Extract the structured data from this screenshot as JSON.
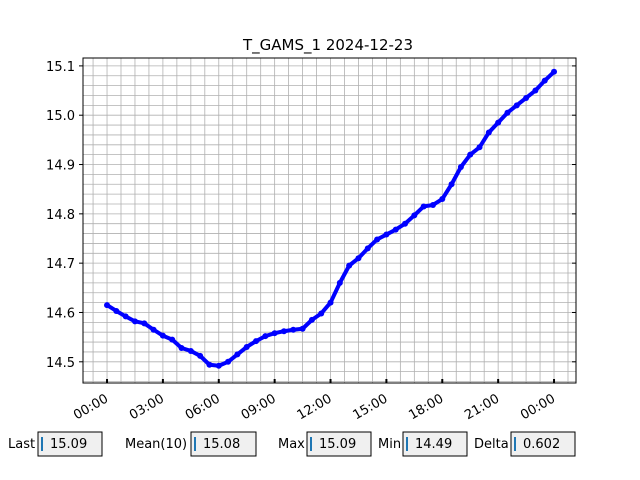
{
  "chart_data": {
    "type": "line",
    "title": "T_GAMS_1 2024-12-23",
    "x": [
      0,
      0.5,
      1,
      1.5,
      2,
      2.5,
      3,
      3.5,
      4,
      4.5,
      5,
      5.5,
      6,
      6.5,
      7,
      7.5,
      8,
      8.5,
      9,
      9.5,
      10,
      10.5,
      11,
      11.5,
      12,
      12.5,
      13,
      13.5,
      14,
      14.5,
      15,
      15.5,
      16,
      16.5,
      17,
      17.5,
      18,
      18.5,
      19,
      19.5,
      20,
      20.5,
      21,
      21.5,
      22,
      22.5,
      23,
      23.5,
      24
    ],
    "series": [
      {
        "name": "T_GAMS_1",
        "color": "#0000ff",
        "values": [
          14.615,
          14.603,
          14.592,
          14.582,
          14.578,
          14.565,
          14.553,
          14.545,
          14.528,
          14.522,
          14.512,
          14.494,
          14.492,
          14.5,
          14.515,
          14.53,
          14.542,
          14.552,
          14.558,
          14.562,
          14.565,
          14.567,
          14.585,
          14.598,
          14.62,
          14.66,
          14.695,
          14.71,
          14.73,
          14.748,
          14.758,
          14.768,
          14.78,
          14.797,
          14.815,
          14.818,
          14.83,
          14.86,
          14.895,
          14.92,
          14.935,
          14.965,
          14.985,
          15.005,
          15.02,
          15.035,
          15.05,
          15.07,
          15.088
        ]
      }
    ],
    "xlim": [
      -1.29,
      25.18
    ],
    "xticks": [
      {
        "value": 0,
        "label": "00:00"
      },
      {
        "value": 3,
        "label": "03:00"
      },
      {
        "value": 6,
        "label": "06:00"
      },
      {
        "value": 9,
        "label": "09:00"
      },
      {
        "value": 12,
        "label": "12:00"
      },
      {
        "value": 15,
        "label": "15:00"
      },
      {
        "value": 18,
        "label": "18:00"
      },
      {
        "value": 21,
        "label": "21:00"
      },
      {
        "value": 24,
        "label": "00:00"
      }
    ],
    "ylim": [
      14.457,
      15.116
    ],
    "yticks": [
      {
        "value": 14.5,
        "label": "14.5"
      },
      {
        "value": 14.6,
        "label": "14.6"
      },
      {
        "value": 14.7,
        "label": "14.7"
      },
      {
        "value": 14.8,
        "label": "14.8"
      },
      {
        "value": 14.9,
        "label": "14.9"
      },
      {
        "value": 15.0,
        "label": "15.0"
      },
      {
        "value": 15.1,
        "label": "15.1"
      }
    ],
    "grid": true
  },
  "stats": [
    {
      "label": "Last",
      "value": "15.09"
    },
    {
      "label": "Mean(10)",
      "value": "15.08"
    },
    {
      "label": "Max",
      "value": "15.09"
    },
    {
      "label": "Min",
      "value": "14.49"
    },
    {
      "label": "Delta",
      "value": "0.602"
    }
  ]
}
